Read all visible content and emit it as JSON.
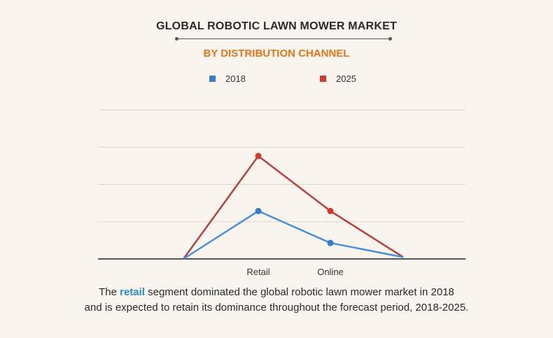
{
  "title": "GLOBAL ROBOTIC LAWN MOWER MARKET",
  "subtitle": "BY DISTRIBUTION CHANNEL",
  "colors": {
    "subtitle": "#e8741a",
    "series_2018": "#4a90d9",
    "series_2025": "#b8403e",
    "highlight": "#2a8bc4"
  },
  "chart_data": {
    "type": "line",
    "categories": [
      "",
      "Retail",
      "Online",
      ""
    ],
    "series": [
      {
        "name": "2018",
        "values": [
          0,
          1.35,
          0.45,
          0.05
        ],
        "color": "#4a90d9",
        "marker": "#3a7cc9"
      },
      {
        "name": "2025",
        "values": [
          0,
          2.9,
          1.35,
          0.05
        ],
        "color": "#b8403e",
        "marker": "#d23a2e"
      }
    ],
    "ylim": [
      0,
      4.2
    ],
    "grid": true,
    "legend": "top-center"
  },
  "caption": {
    "prefix": "The ",
    "highlight": "retail",
    "line1_rest": " segment dominated the global robotic lawn mower market in 2018",
    "line2": "and is expected to retain its dominance throughout the forecast period, 2018-2025."
  }
}
